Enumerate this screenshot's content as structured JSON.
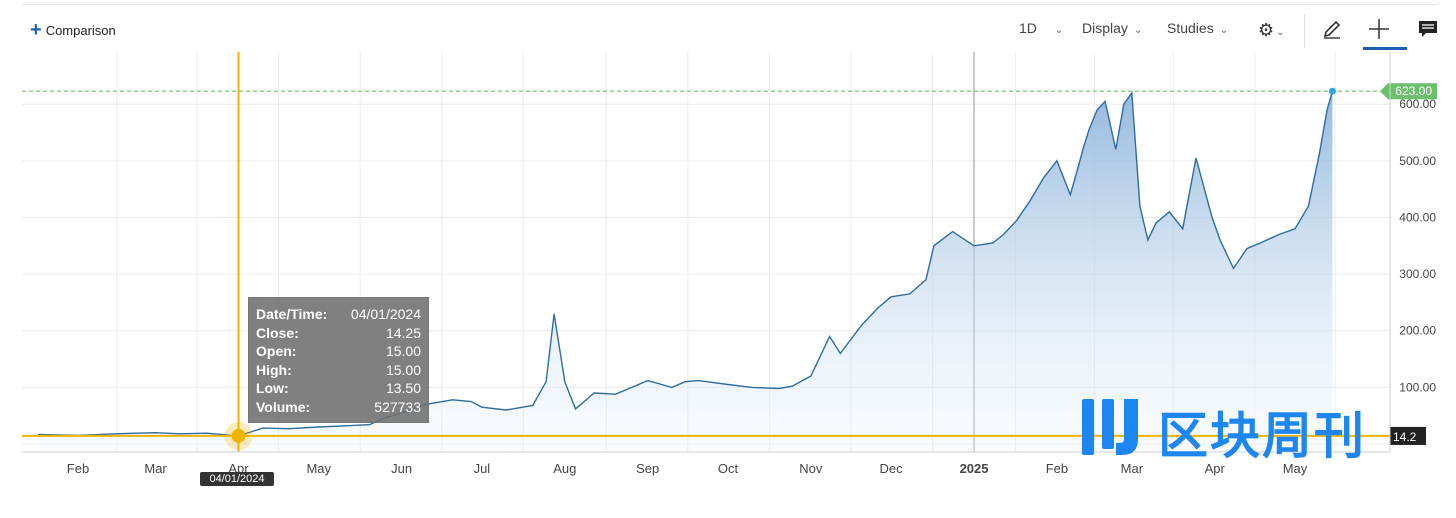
{
  "toolbar": {
    "comparison_label": "Comparison",
    "interval_label": "1D",
    "display_label": "Display",
    "studies_label": "Studies"
  },
  "tooltip": {
    "datetime_key": "Date/Time:",
    "datetime_val": "04/01/2024",
    "close_key": "Close:",
    "close_val": "14.25",
    "open_key": "Open:",
    "open_val": "15.00",
    "high_key": "High:",
    "high_val": "15.00",
    "low_key": "Low:",
    "low_val": "13.50",
    "volume_key": "Volume:",
    "volume_val": "527733"
  },
  "crosshair": {
    "date_label": "04/01/2024",
    "price_label": "14.2"
  },
  "last_price": {
    "label": "623.00"
  },
  "watermark": {
    "text": "区块周刊"
  },
  "colors": {
    "line": "#2d6d9e",
    "area_top": "#9dbfe0",
    "crosshair": "#f0b400",
    "last_price": "#6cbf6c",
    "accent": "#1e5fb4"
  },
  "chart_data": {
    "type": "area",
    "title": "",
    "xlabel": "",
    "ylabel": "",
    "ylim": [
      0,
      650
    ],
    "y_ticks": [
      100,
      200,
      300,
      400,
      500,
      600
    ],
    "y_tick_labels": [
      "100.00",
      "200.00",
      "300.00",
      "400.00",
      "500.00",
      "600.00"
    ],
    "x_ticks": [
      {
        "date": "2024-02-01",
        "label": "Feb"
      },
      {
        "date": "2024-03-01",
        "label": "Mar"
      },
      {
        "date": "2024-04-01",
        "label": "Apr"
      },
      {
        "date": "2024-05-01",
        "label": "May"
      },
      {
        "date": "2024-06-01",
        "label": "Jun"
      },
      {
        "date": "2024-07-01",
        "label": "Jul"
      },
      {
        "date": "2024-08-01",
        "label": "Aug"
      },
      {
        "date": "2024-09-01",
        "label": "Sep"
      },
      {
        "date": "2024-10-01",
        "label": "Oct"
      },
      {
        "date": "2024-11-01",
        "label": "Nov"
      },
      {
        "date": "2024-12-01",
        "label": "Dec"
      },
      {
        "date": "2025-01-01",
        "label": "2025"
      },
      {
        "date": "2025-02-01",
        "label": "Feb"
      },
      {
        "date": "2025-03-01",
        "label": "Mar"
      },
      {
        "date": "2025-04-01",
        "label": "Apr"
      },
      {
        "date": "2025-05-01",
        "label": "May"
      }
    ],
    "grid": true,
    "series": [
      {
        "x": [
          "2024-01-17",
          "2024-02-01",
          "2024-02-15",
          "2024-03-01",
          "2024-03-10",
          "2024-03-20",
          "2024-04-01",
          "2024-04-10",
          "2024-04-20",
          "2024-05-01",
          "2024-05-10",
          "2024-05-20",
          "2024-05-25",
          "2024-06-01",
          "2024-06-10",
          "2024-06-20",
          "2024-06-27",
          "2024-07-01",
          "2024-07-10",
          "2024-07-20",
          "2024-07-25",
          "2024-07-28",
          "2024-08-01",
          "2024-08-05",
          "2024-08-12",
          "2024-08-20",
          "2024-08-26",
          "2024-09-01",
          "2024-09-10",
          "2024-09-15",
          "2024-09-20",
          "2024-10-01",
          "2024-10-10",
          "2024-10-20",
          "2024-10-25",
          "2024-11-01",
          "2024-11-08",
          "2024-11-12",
          "2024-11-20",
          "2024-11-26",
          "2024-12-01",
          "2024-12-08",
          "2024-12-14",
          "2024-12-17",
          "2024-12-24",
          "2025-01-01",
          "2025-01-08",
          "2025-01-12",
          "2025-01-17",
          "2025-01-22",
          "2025-01-27",
          "2025-02-01",
          "2025-02-06",
          "2025-02-09",
          "2025-02-11",
          "2025-02-13",
          "2025-02-16",
          "2025-02-19",
          "2025-02-23",
          "2025-02-26",
          "2025-03-01",
          "2025-03-04",
          "2025-03-07",
          "2025-03-10",
          "2025-03-15",
          "2025-03-20",
          "2025-03-25",
          "2025-03-31",
          "2025-04-03",
          "2025-04-08",
          "2025-04-13",
          "2025-04-18",
          "2025-04-25",
          "2025-05-01",
          "2025-05-06",
          "2025-05-10",
          "2025-05-13",
          "2025-05-15"
        ],
        "y": [
          17,
          15,
          18,
          20,
          18,
          19,
          14.25,
          28,
          27,
          30,
          32,
          34,
          45,
          55,
          70,
          78,
          75,
          65,
          60,
          68,
          110,
          230,
          110,
          62,
          90,
          88,
          100,
          112,
          100,
          110,
          112,
          105,
          100,
          98,
          102,
          120,
          190,
          160,
          210,
          240,
          260,
          265,
          290,
          350,
          375,
          350,
          355,
          370,
          395,
          430,
          470,
          500,
          440,
          490,
          525,
          555,
          590,
          605,
          520,
          600,
          620,
          420,
          360,
          390,
          410,
          380,
          505,
          400,
          360,
          310,
          345,
          355,
          370,
          380,
          420,
          510,
          590,
          623
        ]
      }
    ]
  }
}
